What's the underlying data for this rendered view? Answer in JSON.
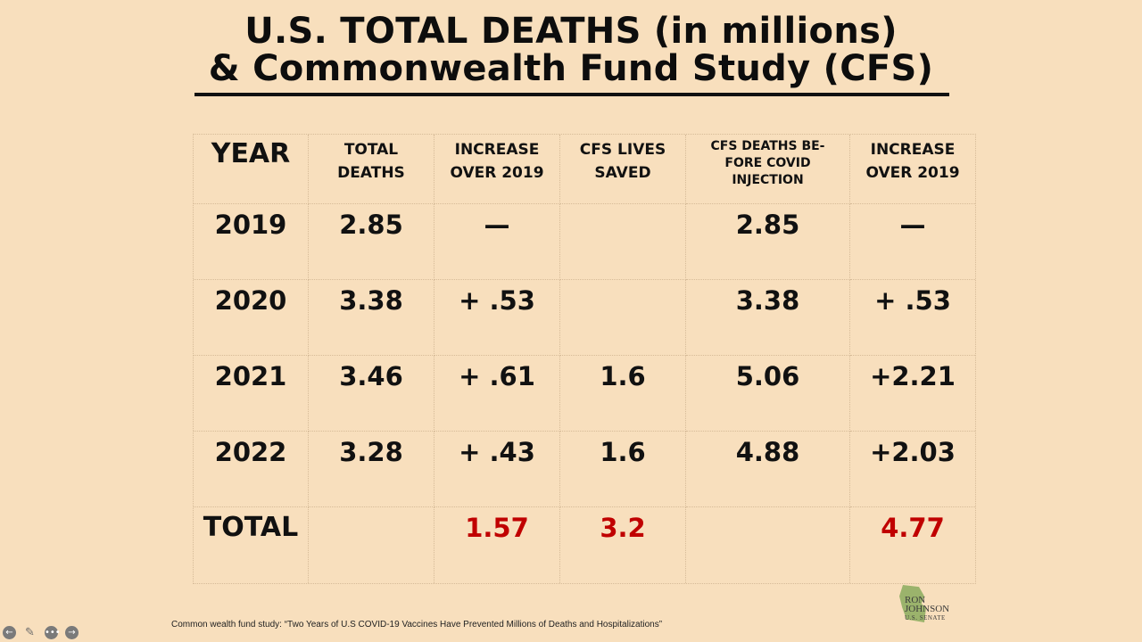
{
  "title": {
    "line1": "U.S. TOTAL DEATHS (in millions)",
    "line2": "& Commonwealth Fund Study (CFS)"
  },
  "table": {
    "headers": {
      "year": "YEAR",
      "total_deaths": "TOTAL\nDEATHS",
      "increase_over_2019": "INCREASE\nOVER 2019",
      "cfs_lives_saved": "CFS LIVES\nSAVED",
      "cfs_deaths_before": "CFS DEATHS BE-\nFORE COVID\nINJECTION",
      "increase_over_2019_b": "INCREASE\nOVER 2019"
    },
    "rows": [
      {
        "year": "2019",
        "total": "2.85",
        "increase": "—",
        "saved": "",
        "cfs_deaths": "2.85",
        "increase_b": "—"
      },
      {
        "year": "2020",
        "total": "3.38",
        "increase": "+ .53",
        "saved": "",
        "cfs_deaths": "3.38",
        "increase_b": "+ .53"
      },
      {
        "year": "2021",
        "total": "3.46",
        "increase": "+ .61",
        "saved": "1.6",
        "cfs_deaths": "5.06",
        "increase_b": "+2.21"
      },
      {
        "year": "2022",
        "total": "3.28",
        "increase": "+ .43",
        "saved": "1.6",
        "cfs_deaths": "4.88",
        "increase_b": "+2.03"
      }
    ],
    "total": {
      "label": "TOTAL",
      "total": "",
      "increase": "1.57",
      "saved": "3.2",
      "cfs_deaths": "",
      "increase_b": "4.77"
    }
  },
  "footnote": "Common wealth fund study: “Two Years of U.S COVID-19 Vaccines Have Prevented Millions of Deaths and Hospitalizations”",
  "logo": {
    "line1": "RON",
    "line2": "JOHNSON",
    "line3": "U.S. SENATE"
  },
  "controls": [
    "back-icon",
    "pen-icon",
    "more-icon",
    "forward-icon"
  ],
  "colors": {
    "background": "#f8dfbd",
    "highlight": "#c00000"
  }
}
